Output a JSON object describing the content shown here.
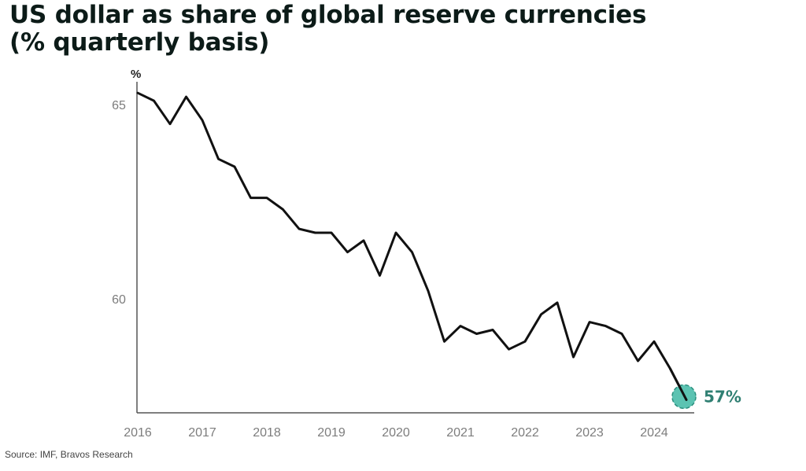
{
  "title_line1": "US dollar as share of global reserve currencies",
  "title_line2": "(% quarterly basis)",
  "source": "Source: IMF, Bravos Research",
  "colors": {
    "line": "#111111",
    "accent": "#3fb8a4",
    "axis": "#555555",
    "tick": "#7d7d7d"
  },
  "chart_data": {
    "type": "line",
    "title": "US dollar as share of global reserve currencies (% quarterly basis)",
    "xlabel": "",
    "ylabel": "%",
    "xlim": [
      2016,
      2024.75
    ],
    "ylim": [
      57.2,
      65.5
    ],
    "x_ticks": [
      2016,
      2017,
      2018,
      2019,
      2020,
      2021,
      2022,
      2023,
      2024
    ],
    "x_tick_labels": [
      "2016",
      "2017",
      "2018",
      "2019",
      "2020",
      "2021",
      "2022",
      "2023",
      "2024"
    ],
    "y_ticks": [
      60,
      65
    ],
    "y_tick_labels": [
      "60",
      "65"
    ],
    "grid": false,
    "series": [
      {
        "x": [
          2016.0,
          2016.25,
          2016.5,
          2016.75,
          2017.0,
          2017.25,
          2017.5,
          2017.75,
          2018.0,
          2018.25,
          2018.5,
          2018.75,
          2019.0,
          2019.25,
          2019.5,
          2019.75,
          2020.0,
          2020.25,
          2020.5,
          2020.75,
          2021.0,
          2021.25,
          2021.5,
          2021.75,
          2022.0,
          2022.25,
          2022.5,
          2022.75,
          2023.0,
          2023.25,
          2023.5,
          2023.75,
          2024.0,
          2024.25,
          2024.5
        ],
        "values": [
          65.3,
          65.1,
          64.5,
          65.2,
          64.6,
          63.6,
          63.4,
          62.6,
          62.6,
          62.3,
          61.8,
          61.7,
          61.7,
          61.2,
          61.5,
          60.6,
          61.7,
          61.2,
          60.2,
          58.9,
          59.3,
          59.1,
          59.2,
          58.7,
          58.9,
          59.6,
          59.9,
          58.5,
          59.4,
          59.3,
          59.1,
          58.4,
          58.9,
          58.2,
          57.4
        ]
      }
    ],
    "annotations": [
      {
        "label": "57%",
        "x": 2024.5,
        "y": 57.4
      }
    ]
  }
}
